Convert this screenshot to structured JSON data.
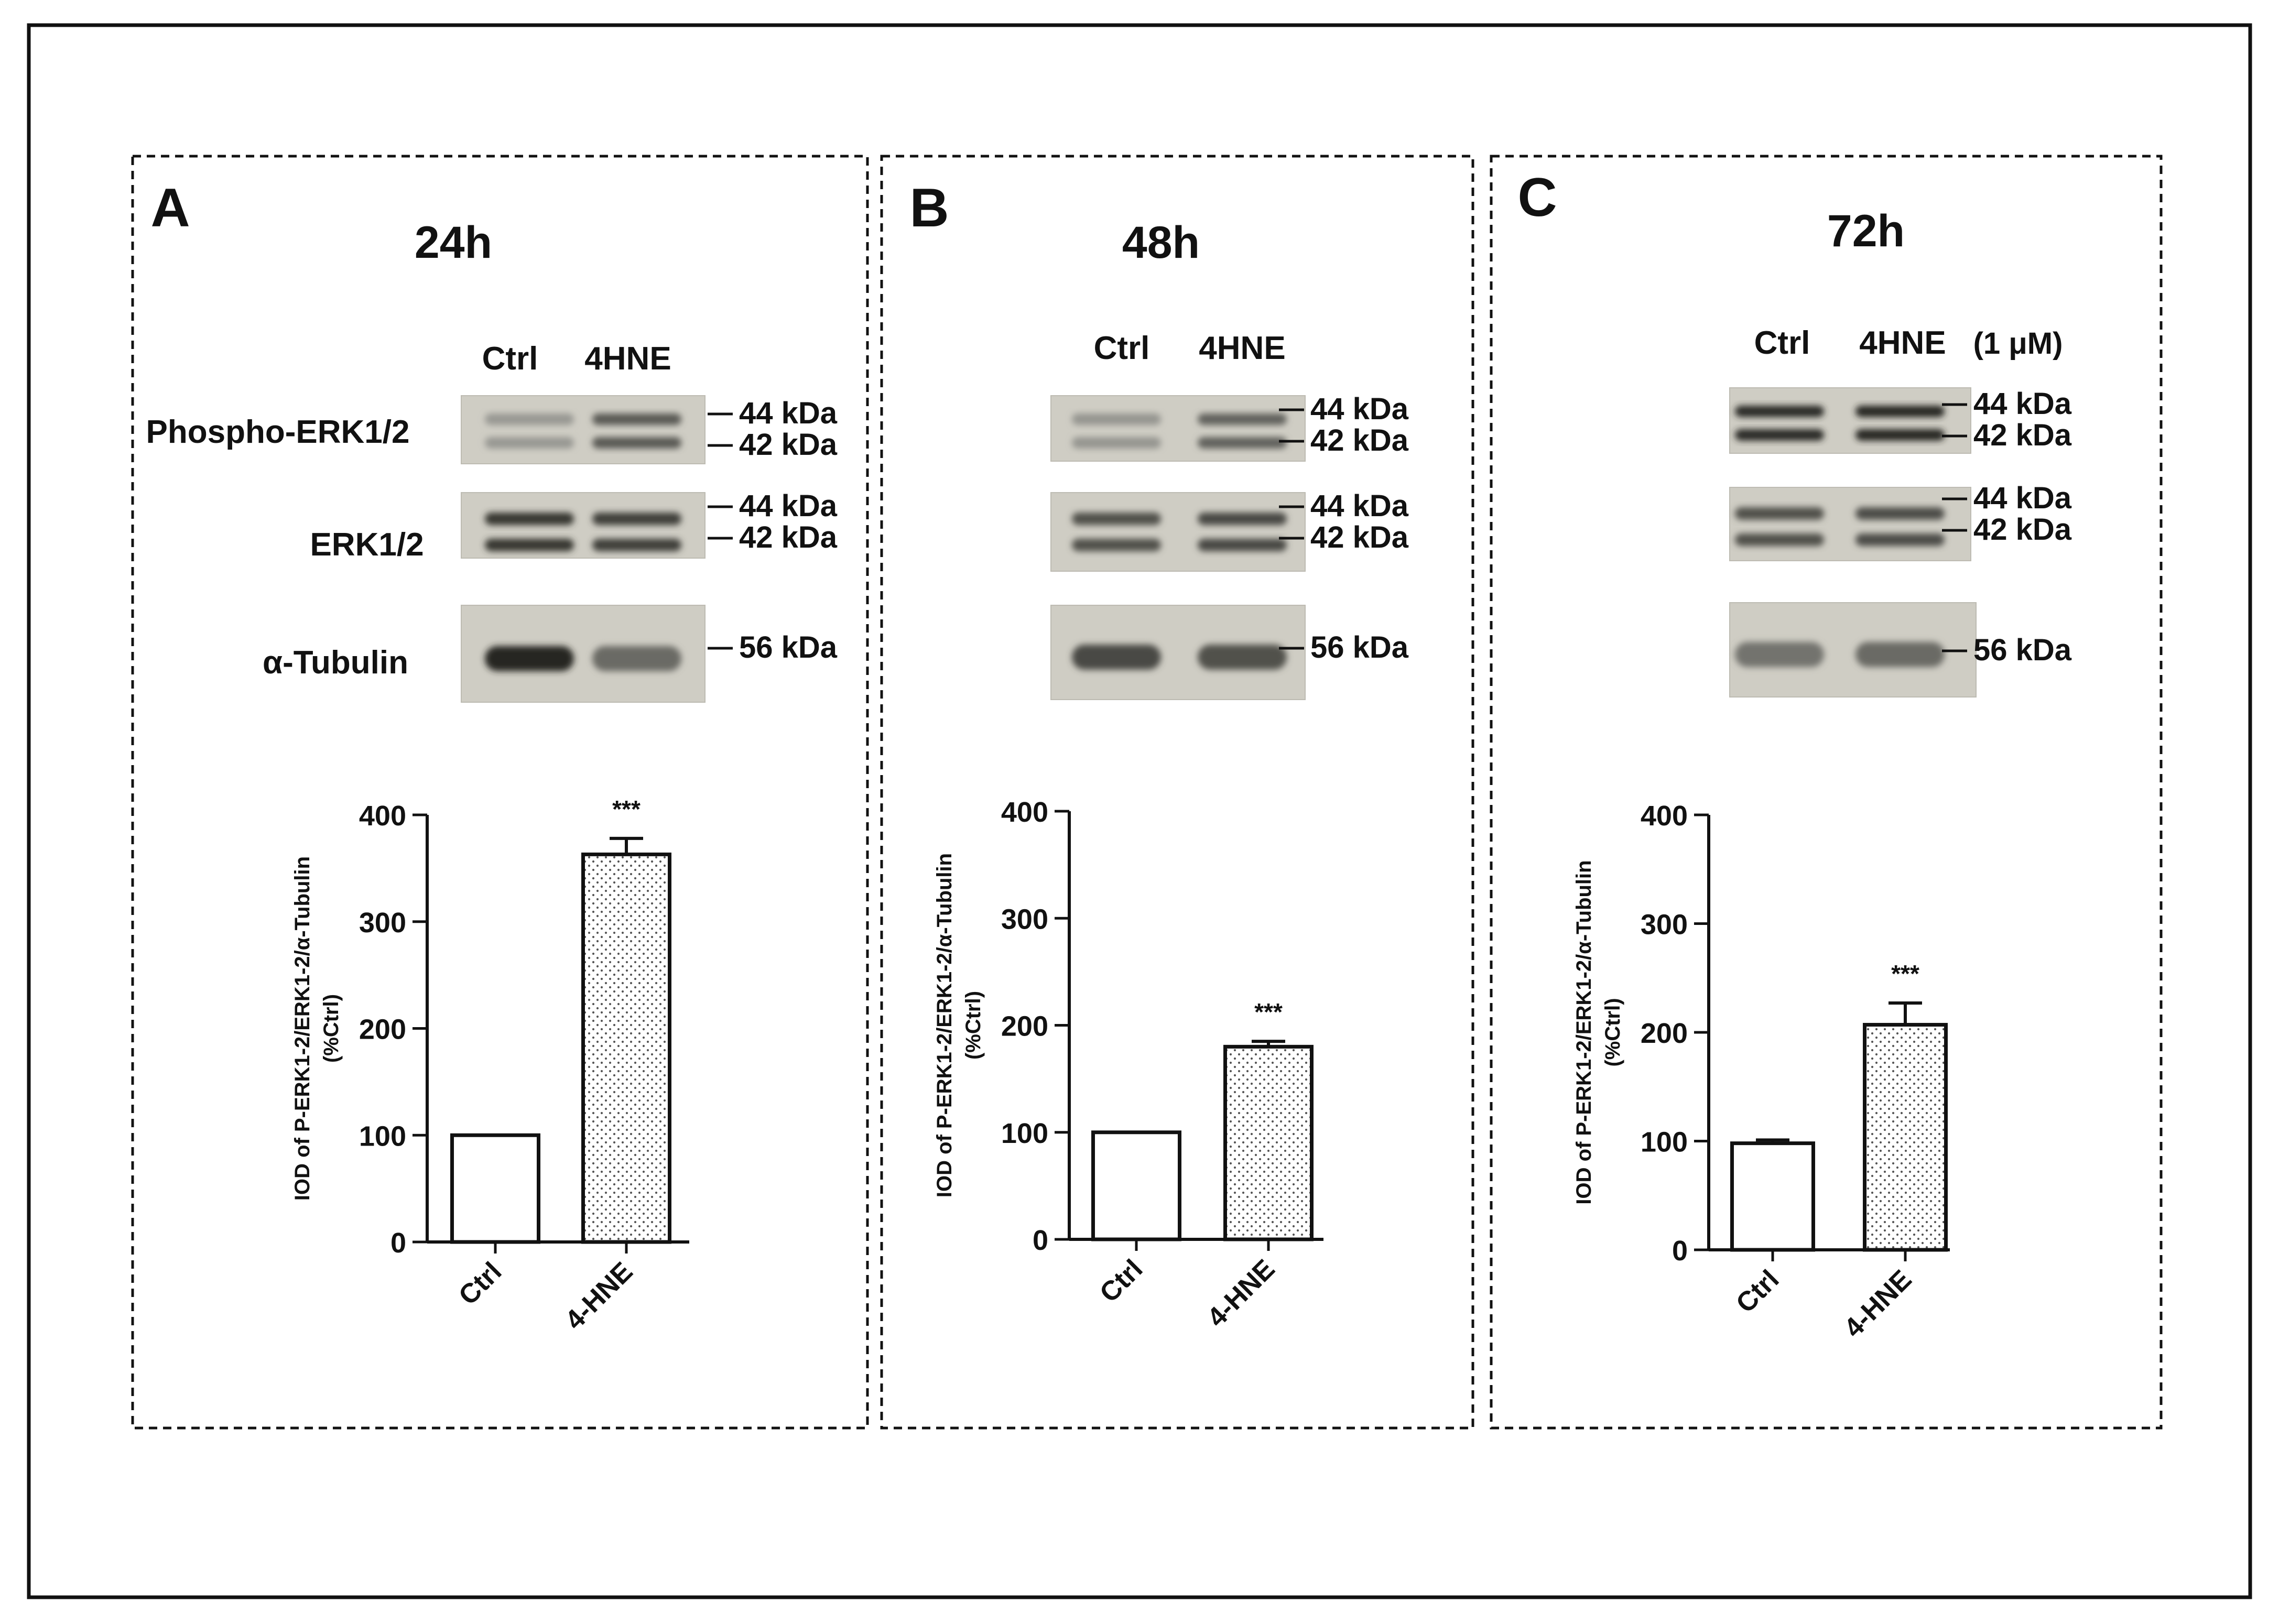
{
  "panels": [
    {
      "letter": "A",
      "time": "24h",
      "lane_labels": [
        "Ctrl",
        "4HNE"
      ],
      "extra_label": "",
      "row_labels": [
        "Phospho-ERK1/2",
        "ERK1/2",
        "α-Tubulin"
      ],
      "phospho_kda": [
        "44 kDa",
        "42 kDa"
      ],
      "erk_kda": [
        "44 kDa",
        "42 kDa"
      ],
      "tubulin_kda": "56 kDa",
      "bands": {
        "phospho": [
          0.28,
          0.65
        ],
        "erk": [
          0.85,
          0.8
        ],
        "tubulin": [
          0.95,
          0.55
        ]
      }
    },
    {
      "letter": "B",
      "time": "48h",
      "lane_labels": [
        "Ctrl",
        "4HNE"
      ],
      "extra_label": "",
      "row_labels": [],
      "phospho_kda": [
        "44 kDa",
        "42 kDa"
      ],
      "erk_kda": [
        "44 kDa",
        "42 kDa"
      ],
      "tubulin_kda": "56 kDa",
      "bands": {
        "phospho": [
          0.3,
          0.6
        ],
        "erk": [
          0.7,
          0.75
        ],
        "tubulin": [
          0.75,
          0.7
        ]
      }
    },
    {
      "letter": "C",
      "time": "72h",
      "lane_labels": [
        "Ctrl",
        "4HNE"
      ],
      "extra_label": "(1 μM)",
      "row_labels": [],
      "phospho_kda": [
        "44 kDa",
        "42 kDa"
      ],
      "erk_kda": [
        "44 kDa",
        "42 kDa"
      ],
      "tubulin_kda": "56 kDa",
      "bands": {
        "phospho": [
          0.92,
          0.95
        ],
        "erk": [
          0.7,
          0.72
        ],
        "tubulin": [
          0.5,
          0.55
        ]
      }
    }
  ],
  "chart_data": [
    {
      "type": "bar",
      "panel": "A",
      "categories": [
        "Ctrl",
        "4-HNE"
      ],
      "values": [
        100,
        363
      ],
      "errors": [
        0,
        15
      ],
      "significance": [
        "",
        "***"
      ],
      "ylabel_line1": "IOD of P-ERK1-2/ERK1-2/α-Tubulin",
      "ylabel_line2": "(%Ctrl)",
      "ylim": [
        0,
        400
      ],
      "yticks": [
        "0",
        "100",
        "200",
        "300",
        "400"
      ],
      "bar_fill": [
        "#ffffff",
        "dotted"
      ]
    },
    {
      "type": "bar",
      "panel": "B",
      "categories": [
        "Ctrl",
        "4-HNE"
      ],
      "values": [
        100,
        180
      ],
      "errors": [
        0,
        5
      ],
      "significance": [
        "",
        "***"
      ],
      "ylabel_line1": "IOD of P-ERK1-2/ERK1-2/α-Tubulin",
      "ylabel_line2": "(%Ctrl)",
      "ylim": [
        0,
        400
      ],
      "yticks": [
        "0",
        "100",
        "200",
        "300",
        "400"
      ],
      "bar_fill": [
        "#ffffff",
        "dotted"
      ]
    },
    {
      "type": "bar",
      "panel": "C",
      "categories": [
        "Ctrl",
        "4-HNE"
      ],
      "values": [
        98,
        207
      ],
      "errors": [
        3,
        20
      ],
      "significance": [
        "",
        "***"
      ],
      "ylabel_line1": "IOD of P-ERK1-2/ERK1-2/α-Tubulin",
      "ylabel_line2": "(%Ctrl)",
      "ylim": [
        0,
        400
      ],
      "yticks": [
        "0",
        "100",
        "200",
        "300",
        "400"
      ],
      "bar_fill": [
        "#ffffff",
        "dotted"
      ]
    }
  ]
}
